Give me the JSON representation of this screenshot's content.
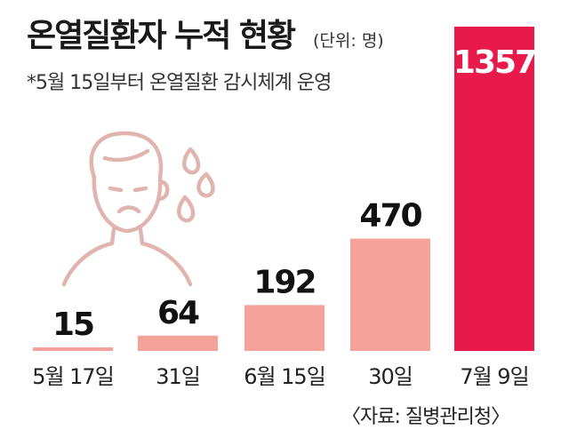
{
  "chart_data": {
    "type": "bar",
    "title": "온열질환자 누적 현황",
    "unit_label": "(단위: 명)",
    "subtitle": "*5월 15일부터 온열질환 감시체계 운영",
    "categories": [
      "5월 17일",
      "31일",
      "6월 15일",
      "30일",
      "7월 9일"
    ],
    "values": [
      15,
      64,
      192,
      470,
      1357
    ],
    "value_labels": [
      "15",
      "64",
      "192",
      "470",
      "1357"
    ],
    "source": "〈자료: 질병관리청〉",
    "colors": {
      "bar": "#f5a29b",
      "highlight": "#e8194b",
      "icon": "#e0b5b0"
    },
    "icon": "sweating-person-icon"
  }
}
